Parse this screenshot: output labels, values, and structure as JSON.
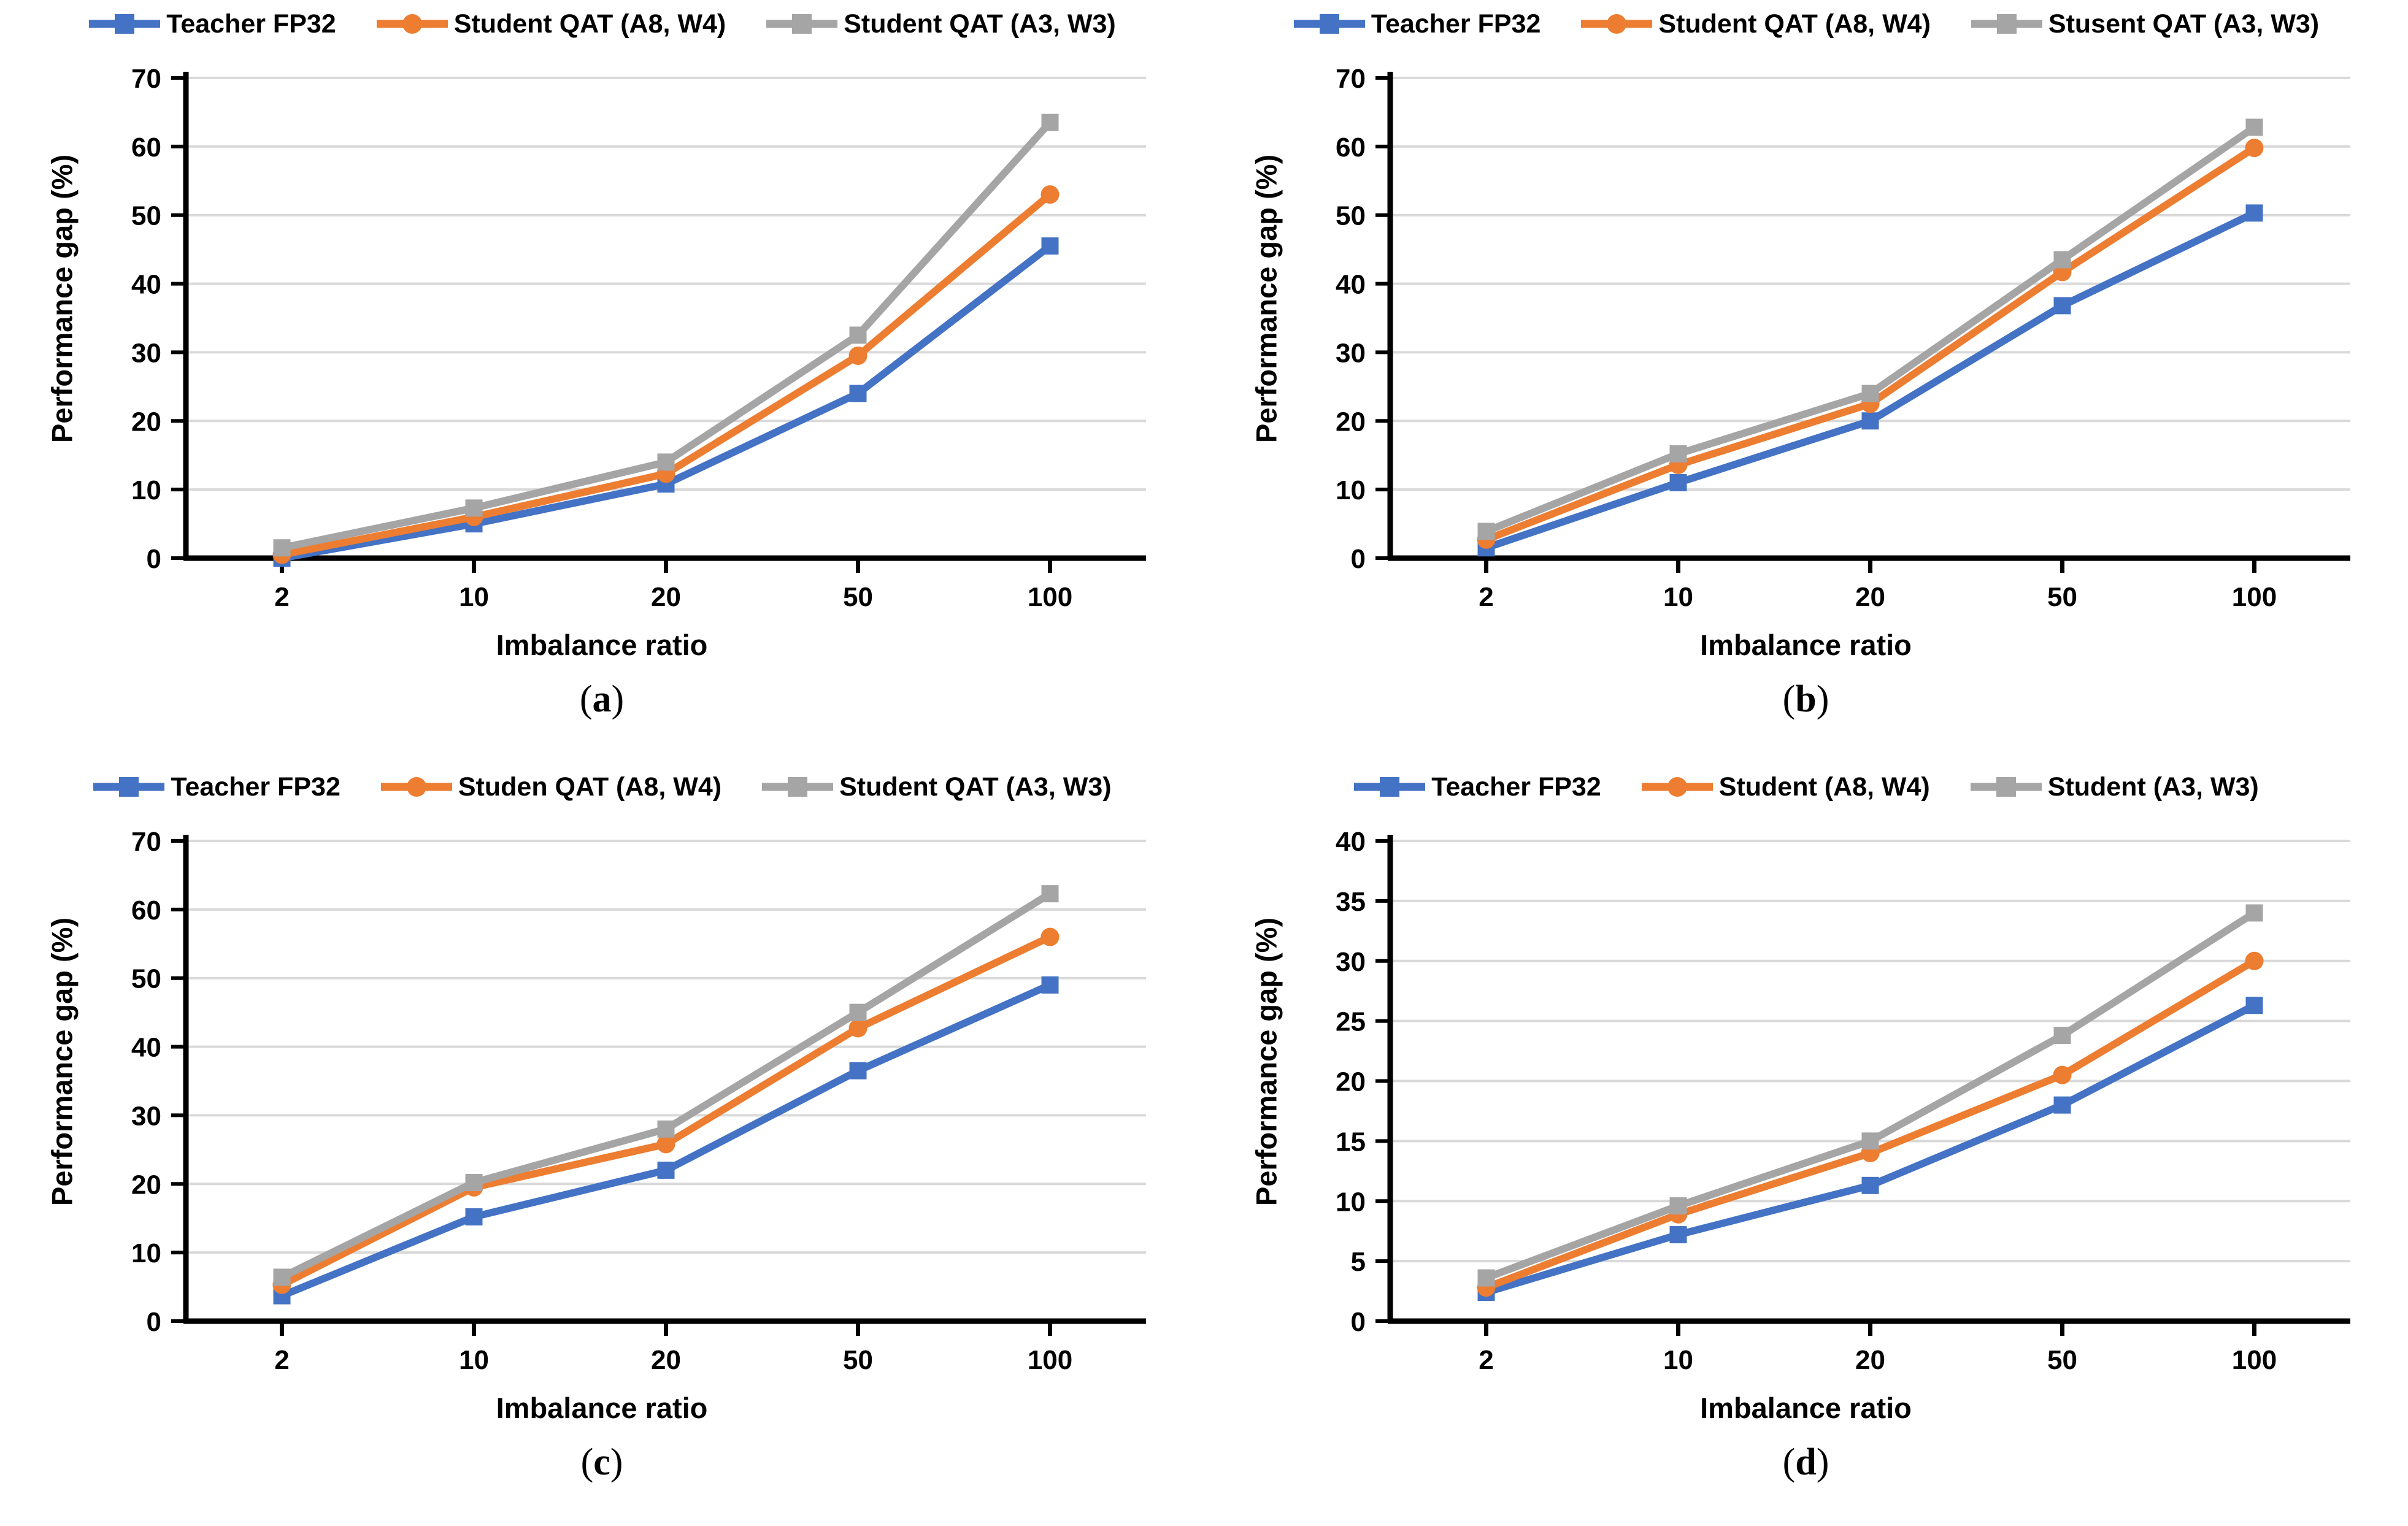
{
  "colors": {
    "blue": "#4472C4",
    "orange": "#ED7D31",
    "gray": "#A5A5A5",
    "gridline": "#D9D9D9",
    "axis": "#000000"
  },
  "chart_data": [
    {
      "id": "a",
      "type": "line",
      "caption_prefix": "(",
      "caption_letter": "a",
      "caption_suffix": ")",
      "xlabel": "Imbalance ratio",
      "ylabel": "Performance gap (%)",
      "categories": [
        2,
        10,
        20,
        50,
        100
      ],
      "ylim": [
        0,
        70
      ],
      "ytick_step": 10,
      "grid": true,
      "legend_position": "top",
      "series": [
        {
          "name": "Teacher FP32",
          "color": "#4472C4",
          "marker": "square",
          "values": [
            0.0,
            5.0,
            10.8,
            24.0,
            45.5
          ]
        },
        {
          "name": "Student QAT (A8, W4)",
          "color": "#ED7D31",
          "marker": "circle",
          "values": [
            0.5,
            6.0,
            12.3,
            29.5,
            53.0
          ]
        },
        {
          "name": "Student QAT (A3, W3)",
          "color": "#A5A5A5",
          "marker": "square",
          "values": [
            1.5,
            7.3,
            14.0,
            32.5,
            63.5
          ]
        }
      ]
    },
    {
      "id": "b",
      "type": "line",
      "caption_prefix": "(",
      "caption_letter": "b",
      "caption_suffix": ")",
      "xlabel": "Imbalance ratio",
      "ylabel": "Performance gap (%)",
      "categories": [
        2,
        10,
        20,
        50,
        100
      ],
      "ylim": [
        0,
        70
      ],
      "ytick_step": 10,
      "grid": true,
      "legend_position": "top",
      "series": [
        {
          "name": "Teacher FP32",
          "color": "#4472C4",
          "marker": "square",
          "values": [
            1.5,
            11.0,
            20.0,
            36.8,
            50.3
          ]
        },
        {
          "name": "Student QAT (A8, W4)",
          "color": "#ED7D31",
          "marker": "circle",
          "values": [
            2.7,
            13.6,
            22.5,
            41.7,
            59.8
          ]
        },
        {
          "name": "Stusent QAT (A3, W3)",
          "color": "#A5A5A5",
          "marker": "square",
          "values": [
            3.9,
            15.2,
            24.0,
            43.5,
            62.8
          ]
        }
      ]
    },
    {
      "id": "c",
      "type": "line",
      "caption_prefix": "(",
      "caption_letter": "c",
      "caption_suffix": ")",
      "xlabel": "Imbalance ratio",
      "ylabel": "Performance gap (%)",
      "categories": [
        2,
        10,
        20,
        50,
        100
      ],
      "ylim": [
        0,
        70
      ],
      "ytick_step": 10,
      "grid": true,
      "legend_position": "top",
      "series": [
        {
          "name": "Teacher FP32",
          "color": "#4472C4",
          "marker": "square",
          "values": [
            3.7,
            15.2,
            22.0,
            36.5,
            49.0
          ]
        },
        {
          "name": "Studen QAT (A8, W4)",
          "color": "#ED7D31",
          "marker": "circle",
          "values": [
            5.3,
            19.5,
            25.8,
            42.7,
            56.0
          ]
        },
        {
          "name": "Student QAT (A3, W3)",
          "color": "#A5A5A5",
          "marker": "square",
          "values": [
            6.4,
            20.2,
            28.0,
            45.0,
            62.3
          ]
        }
      ]
    },
    {
      "id": "d",
      "type": "line",
      "caption_prefix": "(",
      "caption_letter": "d",
      "caption_suffix": ")",
      "xlabel": "Imbalance ratio",
      "ylabel": "Performance gap (%)",
      "categories": [
        2,
        10,
        20,
        50,
        100
      ],
      "ylim": [
        0,
        40
      ],
      "ytick_step": 5,
      "grid": true,
      "legend_position": "top",
      "series": [
        {
          "name": "Teacher FP32",
          "color": "#4472C4",
          "marker": "square",
          "values": [
            2.4,
            7.2,
            11.3,
            18.0,
            26.3
          ]
        },
        {
          "name": "Student (A8, W4)",
          "color": "#ED7D31",
          "marker": "circle",
          "values": [
            2.8,
            8.9,
            14.0,
            20.5,
            30.0
          ]
        },
        {
          "name": "Student (A3, W3)",
          "color": "#A5A5A5",
          "marker": "square",
          "values": [
            3.6,
            9.6,
            15.0,
            23.8,
            34.0
          ]
        }
      ]
    }
  ]
}
